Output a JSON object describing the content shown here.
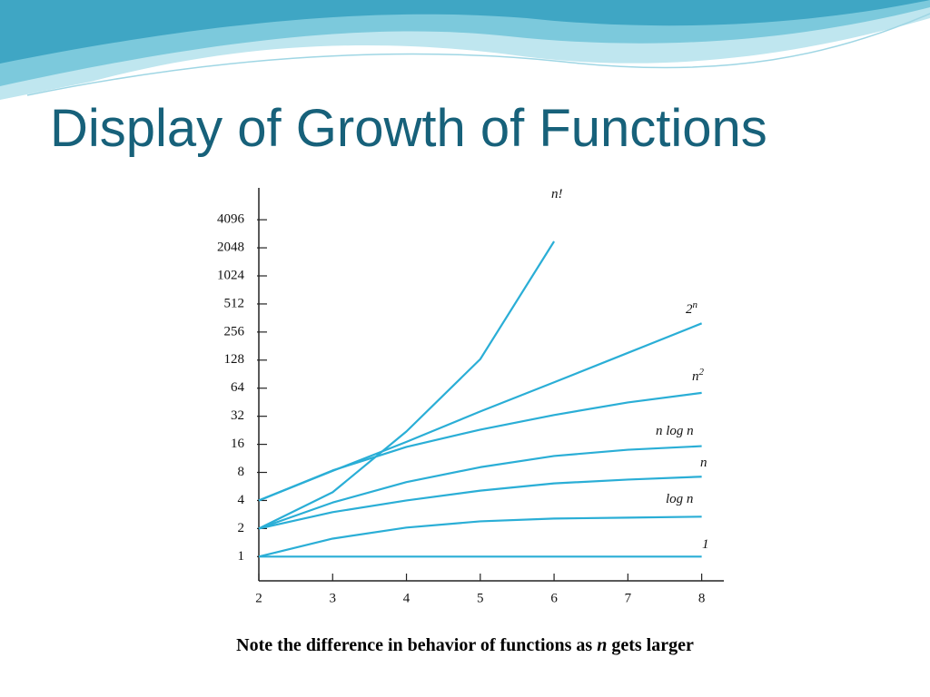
{
  "slide": {
    "title": "Display of Growth of Functions"
  },
  "caption": {
    "before": "Note the difference in behavior of functions as",
    "italic": "n",
    "after": "gets larger"
  },
  "chart_data": {
    "type": "line",
    "log_base": 2,
    "color": "#2aaed6",
    "x": [
      2,
      3,
      4,
      5,
      6,
      7,
      8
    ],
    "xlim": [
      2,
      8.3
    ],
    "xticks": [
      2,
      3,
      4,
      5,
      6,
      7,
      8
    ],
    "ylim": [
      0.55,
      9000
    ],
    "yticks": [
      1,
      2,
      4,
      8,
      16,
      32,
      64,
      128,
      256,
      512,
      1024,
      2048,
      4096
    ],
    "series": [
      {
        "name": "n!",
        "values": [
          2,
          4.9,
          22,
          131,
          2400,
          null,
          null
        ]
      },
      {
        "name": "2",
        "superscript": "n",
        "values": [
          4,
          8.3,
          17,
          36,
          74,
          153,
          317
        ]
      },
      {
        "name": "n",
        "superscript": "2",
        "values": [
          4,
          8.4,
          15,
          23,
          33,
          45,
          57
        ]
      },
      {
        "name": "n log n",
        "values": [
          2,
          3.8,
          6.3,
          9.1,
          12,
          14,
          15.3
        ]
      },
      {
        "name": "n",
        "values": [
          2,
          3,
          4,
          5.1,
          6.1,
          6.7,
          7.2
        ]
      },
      {
        "name": "log n",
        "values": [
          1,
          1.56,
          2.05,
          2.39,
          2.56,
          2.62,
          2.68
        ]
      },
      {
        "name": "1",
        "values": [
          1,
          1,
          1,
          1,
          1,
          1,
          1
        ]
      }
    ]
  }
}
